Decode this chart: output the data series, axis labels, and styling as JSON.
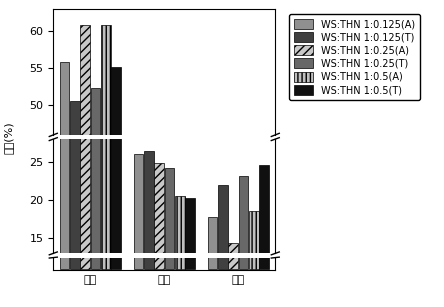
{
  "categories": [
    "液体",
    "固体",
    "气体"
  ],
  "series_labels": [
    "WS:THN 1:0.125(A)",
    "WS:THN 1:0.125(T)",
    "WS:THN 1:0.25(A)",
    "WS:THN 1:0.25(T)",
    "WS:THN 1:0.5(A)",
    "WS:THN 1:0.5(T)"
  ],
  "values": {
    "液体": [
      55.8,
      50.6,
      60.8,
      52.4,
      60.8,
      55.2
    ],
    "固体": [
      26.0,
      26.4,
      24.9,
      24.2,
      20.5,
      20.3
    ],
    "气体": [
      17.8,
      22.0,
      14.3,
      23.2,
      18.6,
      24.6
    ]
  },
  "colors": [
    "#909090",
    "#404040",
    "#c8c8c8",
    "#686868",
    "#c0c0c0",
    "#101010"
  ],
  "hatches": [
    "",
    "",
    "////",
    "",
    "||||",
    ""
  ],
  "ylabel": "产率(%)",
  "background_color": "#ffffff",
  "tick_fontsize": 8,
  "legend_fontsize": 7
}
